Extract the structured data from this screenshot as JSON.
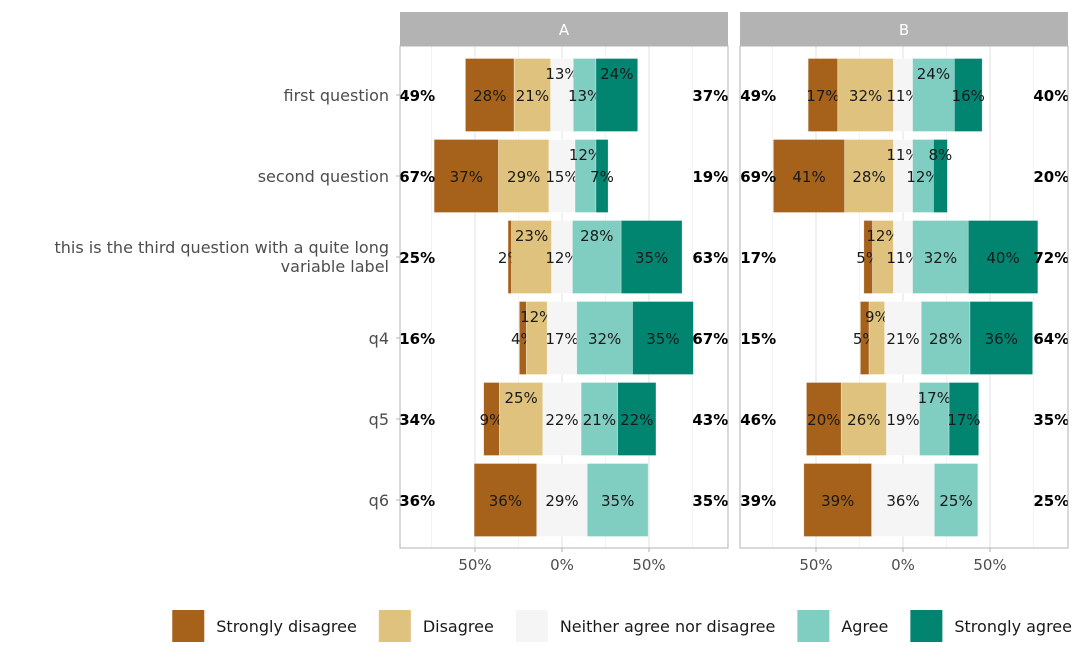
{
  "chart_data": {
    "type": "bar",
    "subtype": "diverging-stacked-likert",
    "orientation": "horizontal",
    "panels": [
      "A",
      "B"
    ],
    "categories": [
      "first question",
      "second question",
      "this is the third question with a quite long variable label",
      "q4",
      "q5",
      "q6"
    ],
    "levels": [
      "Strongly disagree",
      "Disagree",
      "Neither agree nor disagree",
      "Agree",
      "Strongly agree"
    ],
    "legend_labels_visible": [
      "Strongly disagree",
      "Disagree",
      "Neither agree nor disagree",
      "Agree",
      ""
    ],
    "colors": [
      "#a6611a",
      "#dfc27d",
      "#f5f5f5",
      "#80cdc1",
      "#018571"
    ],
    "strip_color": "#b3b3b3",
    "xlim": [
      -93,
      95
    ],
    "x_ticks": [
      -50,
      0,
      50
    ],
    "x_tick_labels": [
      "50%",
      "0%",
      "50%"
    ],
    "grid": true,
    "legend_position": "bottom",
    "series": [
      {
        "panel": "A",
        "values": [
          [
            28,
            21,
            13,
            13,
            24
          ],
          [
            37,
            29,
            15,
            12,
            7
          ],
          [
            2,
            23,
            12,
            28,
            35
          ],
          [
            4,
            12,
            17,
            32,
            35
          ],
          [
            9,
            25,
            22,
            21,
            22
          ],
          [
            36,
            0,
            29,
            35,
            0
          ]
        ],
        "totals_left": [
          "49%",
          "67%",
          "25%",
          "16%",
          "34%",
          "36%"
        ],
        "totals_right": [
          "37%",
          "19%",
          "63%",
          "67%",
          "43%",
          "35%"
        ]
      },
      {
        "panel": "B",
        "values": [
          [
            17,
            32,
            11,
            24,
            16
          ],
          [
            41,
            28,
            11,
            12,
            8
          ],
          [
            5,
            12,
            11,
            32,
            40
          ],
          [
            5,
            9,
            21,
            28,
            36
          ],
          [
            20,
            26,
            19,
            17,
            17
          ],
          [
            39,
            0,
            36,
            25,
            0
          ]
        ],
        "totals_left": [
          "49%",
          "69%",
          "17%",
          "15%",
          "46%",
          "39%"
        ],
        "totals_right": [
          "40%",
          "20%",
          "72%",
          "64%",
          "35%",
          "25%"
        ]
      }
    ]
  }
}
